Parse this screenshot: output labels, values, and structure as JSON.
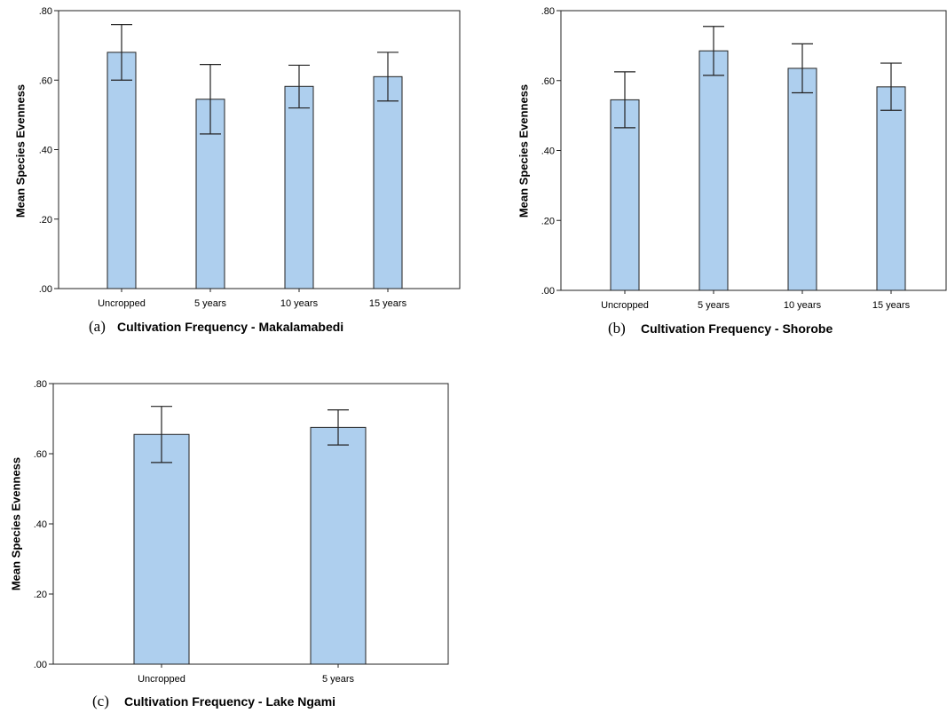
{
  "colors": {
    "bar_fill": "#aecfee",
    "bar_stroke": "#222222",
    "axis": "#222222",
    "errorbar": "#222222"
  },
  "chart_data": [
    {
      "type": "bar",
      "panel_label": "(a)",
      "xlabel": "Cultivation Frequency - Makalamabedi",
      "ylabel": "Mean Species Evenness",
      "categories": [
        "Uncropped",
        "5 years",
        "10 years",
        "15 years"
      ],
      "values": [
        0.68,
        0.545,
        0.582,
        0.61
      ],
      "error_low": [
        0.6,
        0.445,
        0.52,
        0.54
      ],
      "error_high": [
        0.76,
        0.645,
        0.643,
        0.68
      ],
      "ylim": [
        0,
        0.8
      ],
      "yticks": [
        ".00",
        ".20",
        ".40",
        ".60",
        ".80"
      ],
      "grid": false,
      "legend": "none"
    },
    {
      "type": "bar",
      "panel_label": "(b)",
      "xlabel": "Cultivation Frequency - Shorobe",
      "ylabel": "Mean Species Evenness",
      "categories": [
        "Uncropped",
        "5 years",
        "10 years",
        "15 years"
      ],
      "values": [
        0.545,
        0.685,
        0.635,
        0.582
      ],
      "error_low": [
        0.465,
        0.615,
        0.565,
        0.515
      ],
      "error_high": [
        0.625,
        0.755,
        0.705,
        0.65
      ],
      "ylim": [
        0,
        0.8
      ],
      "yticks": [
        ".00",
        ".20",
        ".40",
        ".60",
        ".80"
      ],
      "grid": false,
      "legend": "none"
    },
    {
      "type": "bar",
      "panel_label": "(c)",
      "xlabel": "Cultivation Frequency - Lake Ngami",
      "ylabel": "Mean Species Evenness",
      "categories": [
        "Uncropped",
        "5 years"
      ],
      "values": [
        0.655,
        0.675
      ],
      "error_low": [
        0.575,
        0.625
      ],
      "error_high": [
        0.735,
        0.725
      ],
      "ylim": [
        0,
        0.8
      ],
      "yticks": [
        ".00",
        ".20",
        ".40",
        ".60",
        ".80"
      ],
      "grid": false,
      "legend": "none"
    }
  ]
}
